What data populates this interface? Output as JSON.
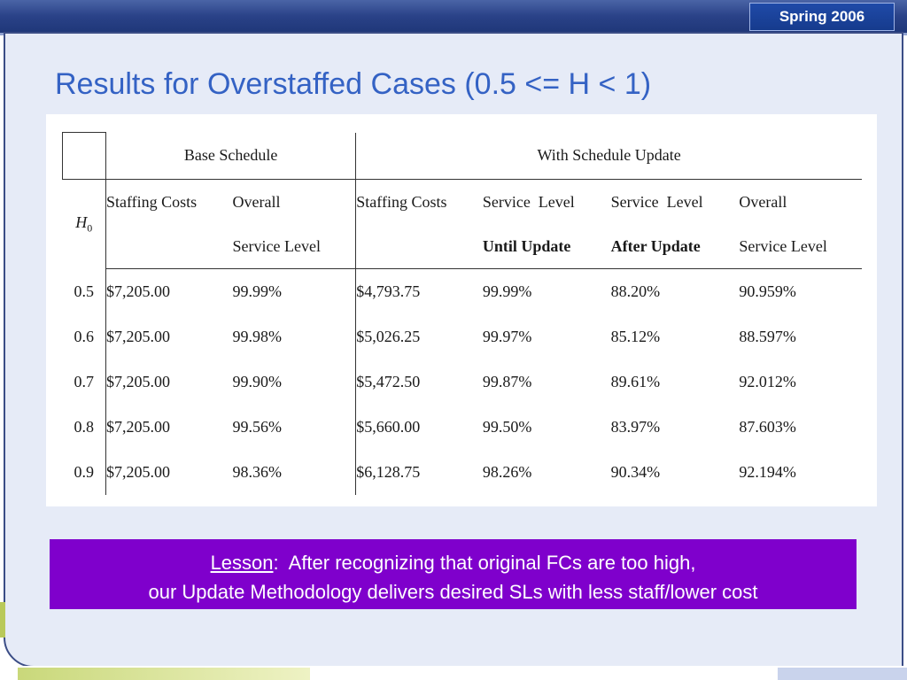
{
  "header": {
    "badge": "Spring 2006"
  },
  "slide": {
    "title": "Results for Overstaffed Cases (0.5 <= H < 1)"
  },
  "table": {
    "group_headers": {
      "base": "Base Schedule",
      "update": "With Schedule Update"
    },
    "h0_label": "H",
    "h0_sub": "0",
    "col_headers_line1": [
      "Staffing Costs",
      "Overall",
      "Staffing Costs",
      "Service  Level",
      "Service  Level",
      "Overall"
    ],
    "col_headers_line2": [
      "",
      "Service Level",
      "",
      "Until Update",
      "After Update",
      "Service Level"
    ],
    "rows": [
      [
        "0.5",
        "$7,205.00",
        "99.99%",
        "$4,793.75",
        "99.99%",
        "88.20%",
        "90.959%"
      ],
      [
        "0.6",
        "$7,205.00",
        "99.98%",
        "$5,026.25",
        "99.97%",
        "85.12%",
        "88.597%"
      ],
      [
        "0.7",
        "$7,205.00",
        "99.90%",
        "$5,472.50",
        "99.87%",
        "89.61%",
        "92.012%"
      ],
      [
        "0.8",
        "$7,205.00",
        "99.56%",
        "$5,660.00",
        "99.50%",
        "83.97%",
        "87.603%"
      ],
      [
        "0.9",
        "$7,205.00",
        "98.36%",
        "$6,128.75",
        "98.26%",
        "90.34%",
        "92.194%"
      ]
    ]
  },
  "lesson": {
    "label": "Lesson",
    "line1_rest": ":  After recognizing that original FCs are too high,",
    "line2": "our Update Methodology delivers desired SLs with less staff/lower cost"
  },
  "colors": {
    "title": "#3462c4",
    "lesson_bg": "#7f00cc",
    "panel_bg": "#e6ebf7",
    "header_band": "#1d3576"
  }
}
